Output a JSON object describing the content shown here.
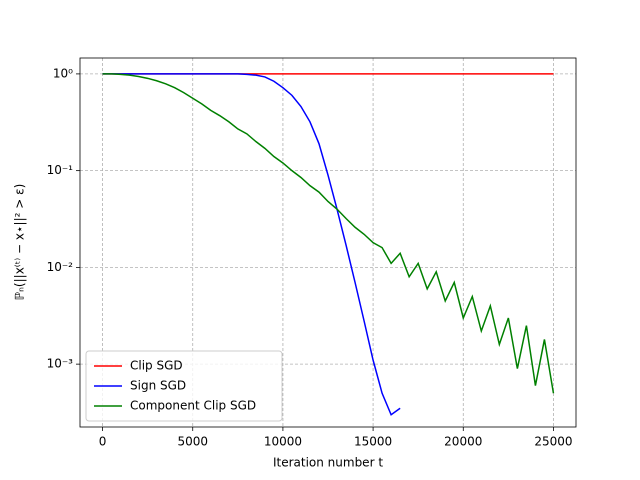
{
  "chart_data": {
    "type": "line",
    "xlabel": "Iteration number t",
    "ylabel": "ℙₙ(||x⁽ᵗ⁾ − x⋆||² > ε)",
    "x": [
      0,
      500,
      1000,
      1500,
      2000,
      2500,
      3000,
      3500,
      4000,
      4500,
      5000,
      5500,
      6000,
      6500,
      7000,
      7500,
      8000,
      8500,
      9000,
      9500,
      10000,
      10500,
      11000,
      11500,
      12000,
      12500,
      13000,
      13500,
      14000,
      14500,
      15000,
      15500,
      16000,
      16500,
      17000,
      17500,
      18000,
      18500,
      19000,
      19500,
      20000,
      20500,
      21000,
      21500,
      22000,
      22500,
      23000,
      23500,
      24000,
      24500,
      25000
    ],
    "series": [
      {
        "name": "Clip SGD",
        "color": "#ff0000",
        "values": [
          1,
          1,
          1,
          1,
          1,
          1,
          1,
          1,
          1,
          1,
          1,
          1,
          1,
          1,
          1,
          1,
          1,
          1,
          1,
          1,
          1,
          1,
          1,
          1,
          1,
          1,
          1,
          1,
          1,
          1,
          1,
          1,
          1,
          1,
          1,
          1,
          1,
          1,
          1,
          1,
          1,
          1,
          1,
          1,
          1,
          1,
          1,
          1,
          1,
          1,
          1
        ]
      },
      {
        "name": "Sign SGD",
        "color": "#0000ff",
        "values": [
          1,
          1,
          1,
          1,
          1,
          1,
          1,
          1,
          1,
          1,
          1,
          1,
          1,
          1,
          1,
          1,
          0.99,
          0.97,
          0.93,
          0.84,
          0.72,
          0.6,
          0.46,
          0.32,
          0.19,
          0.09,
          0.04,
          0.017,
          0.007,
          0.0028,
          0.0011,
          0.0005,
          0.0003,
          0.00035,
          null,
          null,
          null,
          null,
          null,
          null,
          null,
          null,
          null,
          null,
          null,
          null,
          null,
          null,
          null,
          null,
          null
        ]
      },
      {
        "name": "Component Clip SGD",
        "color": "#008000",
        "values": [
          1,
          1,
          0.99,
          0.97,
          0.94,
          0.9,
          0.85,
          0.79,
          0.72,
          0.64,
          0.56,
          0.49,
          0.42,
          0.37,
          0.32,
          0.27,
          0.24,
          0.2,
          0.17,
          0.14,
          0.12,
          0.1,
          0.085,
          0.07,
          0.06,
          0.048,
          0.04,
          0.032,
          0.026,
          0.022,
          0.018,
          0.016,
          0.011,
          0.014,
          0.008,
          0.011,
          0.006,
          0.009,
          0.0045,
          0.007,
          0.003,
          0.005,
          0.0022,
          0.004,
          0.0016,
          0.003,
          0.0009,
          0.0025,
          0.0006,
          0.0018,
          0.0005
        ]
      }
    ],
    "xlim": [
      -1250,
      26250
    ],
    "xticks": [
      0,
      5000,
      10000,
      15000,
      20000,
      25000
    ],
    "ylim": [
      0.000224,
      1.46
    ],
    "yscale": "log",
    "yticks": [
      {
        "value": 1,
        "label": "10⁰"
      },
      {
        "value": 0.1,
        "label": "10⁻¹"
      },
      {
        "value": 0.01,
        "label": "10⁻²"
      },
      {
        "value": 0.001,
        "label": "10⁻³"
      }
    ],
    "grid": true,
    "legend": "lower left"
  }
}
